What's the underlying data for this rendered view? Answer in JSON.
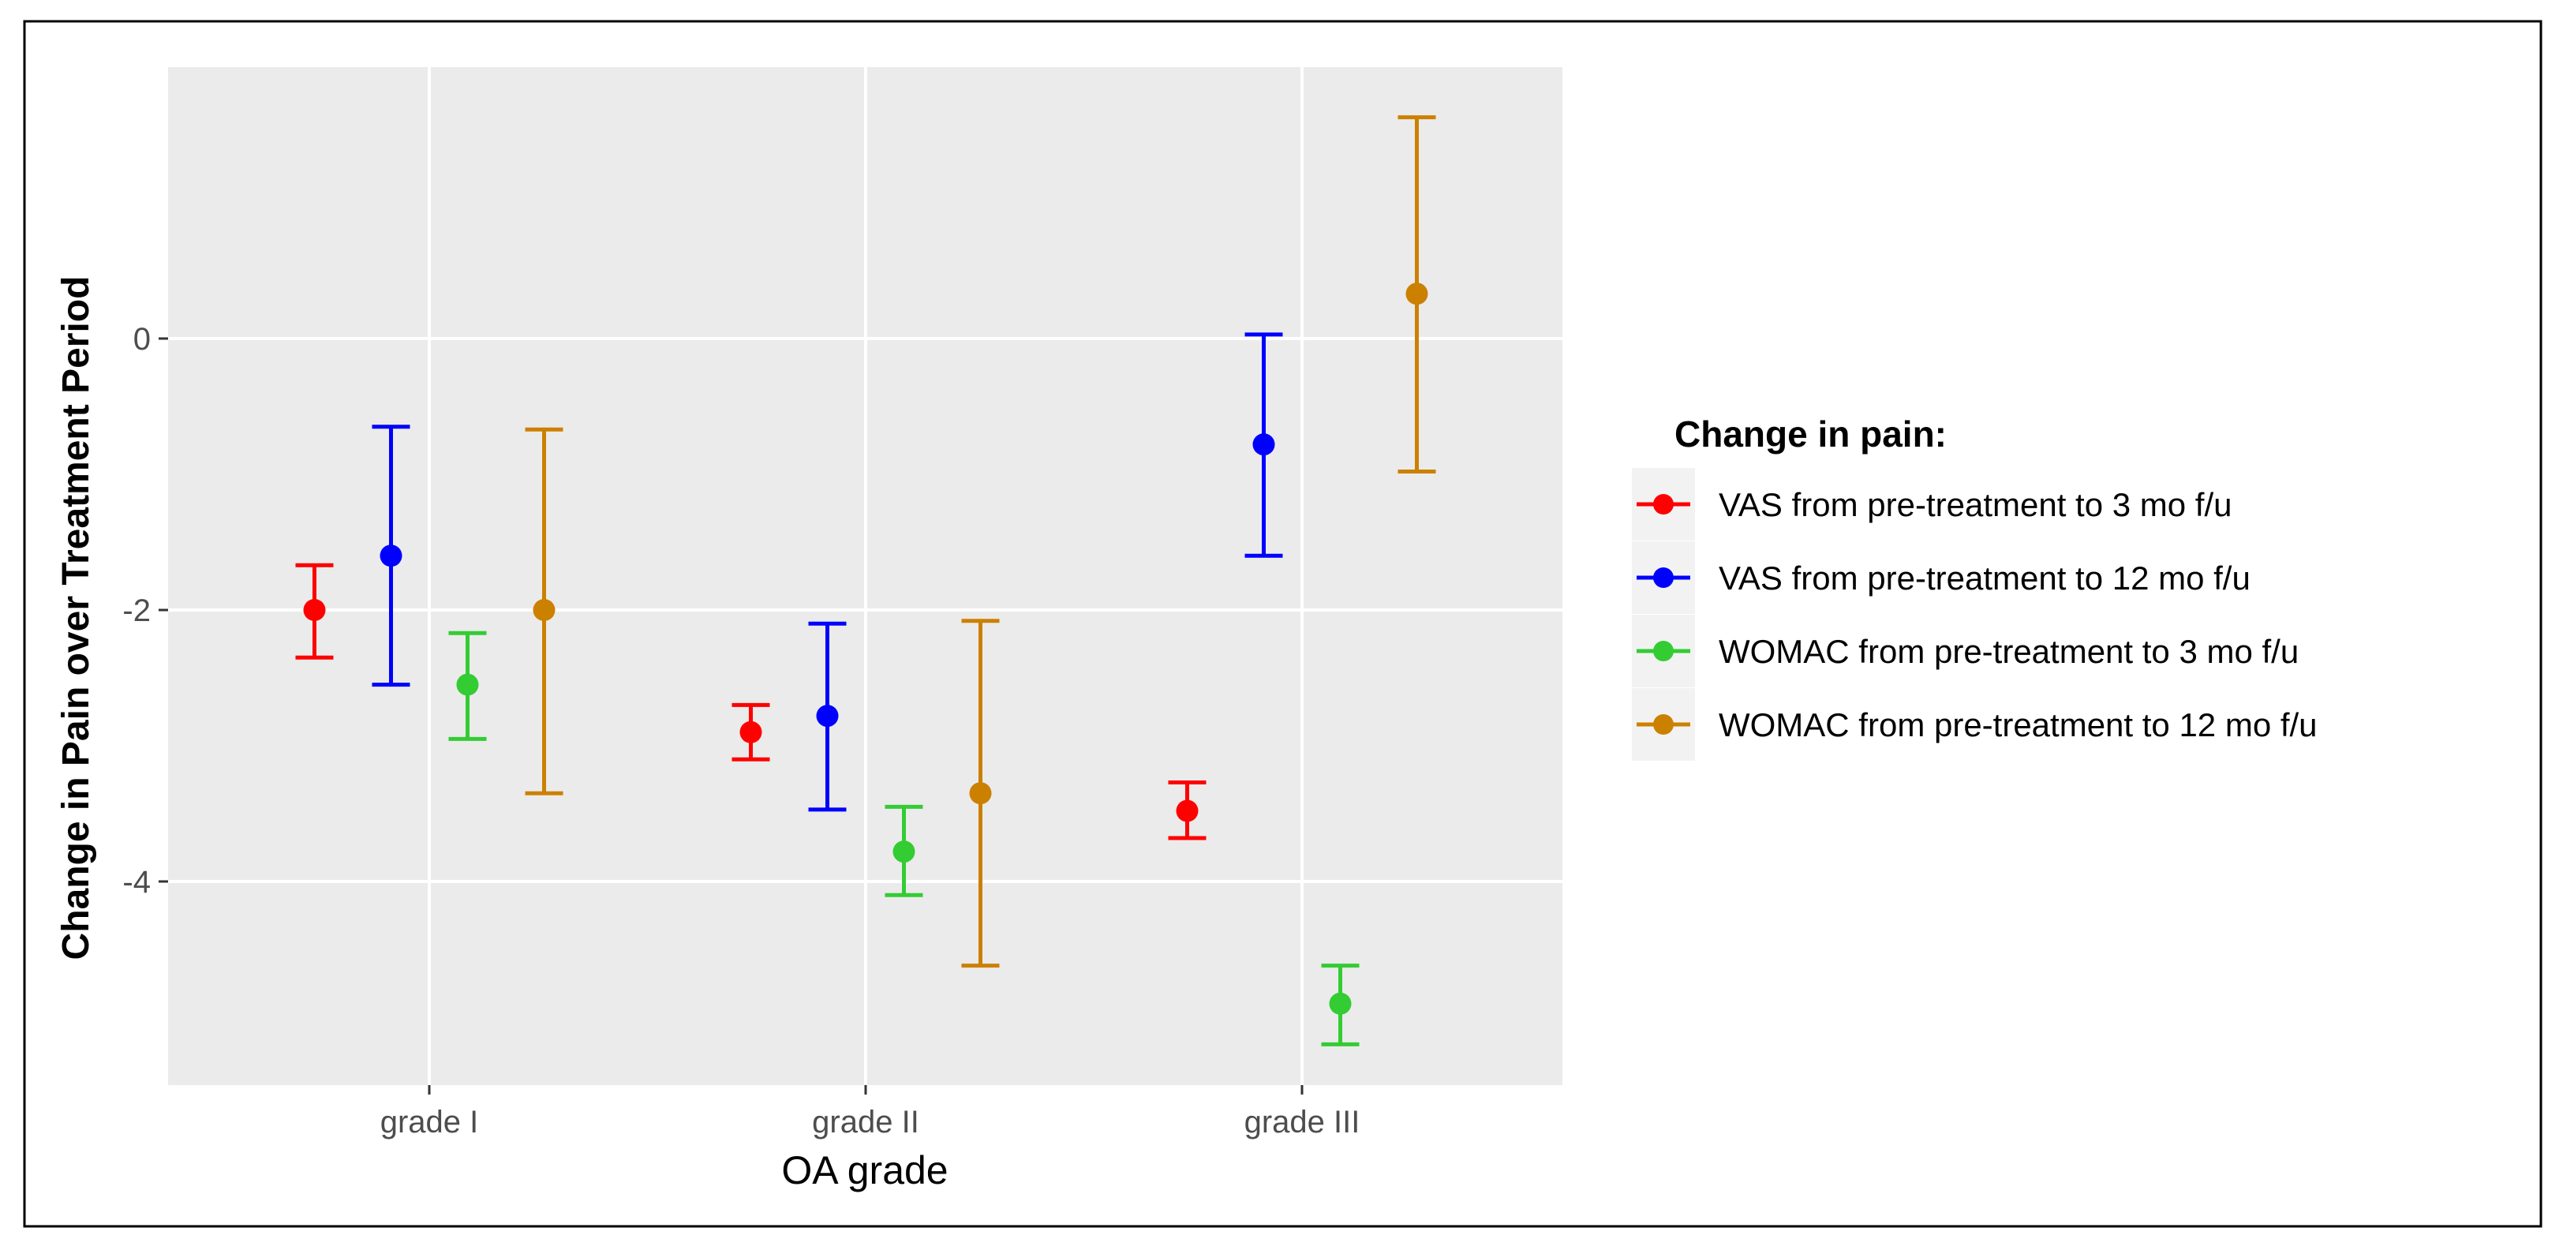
{
  "chart_data": {
    "type": "errorbar",
    "xlabel": "OA grade",
    "ylabel": "Change in Pain over  Treatment Period",
    "categories": [
      "grade I",
      "grade II",
      "grade III"
    ],
    "ylim": [
      -5.5,
      2.0
    ],
    "yticks": [
      0,
      -2,
      -4
    ],
    "ytick_labels": [
      "0",
      "-2",
      "-4"
    ],
    "legend": {
      "title": "Change in pain:",
      "position": "right"
    },
    "series": [
      {
        "name": "VAS from pre-treatment to 3 mo f/u",
        "color": "#ff0000",
        "values": [
          -2.0,
          -2.9,
          -3.48
        ],
        "lower": [
          -2.35,
          -3.1,
          -3.68
        ],
        "upper": [
          -1.67,
          -2.7,
          -3.27
        ]
      },
      {
        "name": "VAS from pre-treatment to 12 mo f/u",
        "color": "#0000ff",
        "values": [
          -1.6,
          -2.78,
          -0.78
        ],
        "lower": [
          -2.55,
          -3.47,
          -1.6
        ],
        "upper": [
          -0.65,
          -2.1,
          0.03
        ]
      },
      {
        "name": "WOMAC from pre-treatment to 3 mo f/u",
        "color": "#33cc33",
        "values": [
          -2.55,
          -3.78,
          -4.9
        ],
        "lower": [
          -2.95,
          -4.1,
          -5.2
        ],
        "upper": [
          -2.17,
          -3.45,
          -4.62
        ]
      },
      {
        "name": "WOMAC from pre-treatment to 12 mo f/u",
        "color": "#cc8000",
        "values": [
          -2.0,
          -3.35,
          0.33
        ],
        "lower": [
          -3.35,
          -4.62,
          -0.98
        ],
        "upper": [
          -0.67,
          -2.08,
          1.63
        ]
      }
    ]
  },
  "colors": {
    "panel": "#ebebeb",
    "grid": "#ffffff",
    "border": "#000000"
  }
}
